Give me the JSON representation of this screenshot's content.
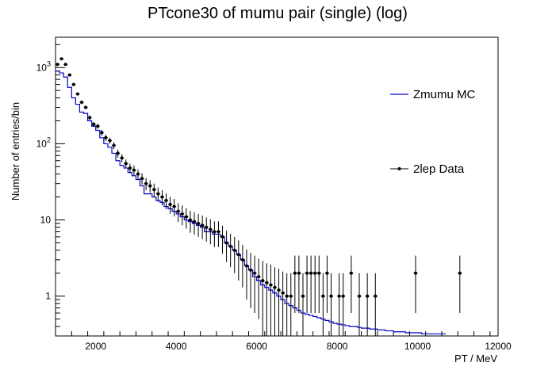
{
  "chart_data": {
    "type": "histogram",
    "title": "PTcone30 of mumu pair (single) (log)",
    "xlabel": "PT / MeV",
    "ylabel": "Number of entries/bin",
    "xlim": [
      1000,
      12000
    ],
    "ylim": [
      0.3,
      2500
    ],
    "yscale": "log",
    "x_ticks": [
      2000,
      4000,
      6000,
      8000,
      10000,
      12000
    ],
    "y_ticks": [
      {
        "value": 1,
        "label": "1"
      },
      {
        "value": 10,
        "label": "10"
      },
      {
        "value": 100,
        "label": "10",
        "exp": "2"
      },
      {
        "value": 1000,
        "label": "10",
        "exp": "3"
      }
    ],
    "bin_width": 100,
    "legend_placement": "right",
    "series": [
      {
        "name": "Zmumu MC",
        "kind": "step",
        "color": "#0000cc",
        "x": [
          1000,
          1100,
          1200,
          1300,
          1400,
          1500,
          1600,
          1700,
          1800,
          1900,
          2000,
          2100,
          2200,
          2300,
          2400,
          2500,
          2600,
          2700,
          2800,
          2900,
          3000,
          3100,
          3200,
          3300,
          3400,
          3500,
          3600,
          3700,
          3800,
          3900,
          4000,
          4100,
          4200,
          4300,
          4400,
          4500,
          4600,
          4700,
          4800,
          4900,
          5000,
          5100,
          5200,
          5300,
          5400,
          5500,
          5600,
          5700,
          5800,
          5900,
          6000,
          6100,
          6200,
          6300,
          6400,
          6500,
          6600,
          6700,
          6800,
          6900,
          7000,
          7100,
          7200,
          7300,
          7400,
          7500,
          7600,
          7700,
          7800,
          7900,
          8000,
          8100,
          8200,
          8300,
          8400,
          8500,
          8600,
          8700,
          8800,
          8900,
          9000,
          9100,
          9200,
          9300,
          9400,
          9500,
          9600,
          9700,
          9800,
          9900,
          10000,
          10100,
          10200,
          10300,
          10400,
          10500,
          10600
        ],
        "values": [
          900,
          850,
          750,
          550,
          400,
          330,
          260,
          250,
          200,
          170,
          150,
          120,
          100,
          90,
          75,
          60,
          52,
          48,
          42,
          38,
          34,
          28,
          22,
          22,
          20,
          18,
          17,
          15,
          14,
          13,
          12,
          11,
          10,
          9.5,
          9,
          8.5,
          8,
          7,
          7,
          6.5,
          6.5,
          6,
          5,
          4.5,
          4,
          3.5,
          3,
          2.5,
          2.2,
          1.8,
          1.6,
          1.4,
          1.3,
          1.2,
          1.1,
          1.0,
          0.9,
          0.8,
          0.75,
          0.7,
          0.65,
          0.6,
          0.58,
          0.56,
          0.54,
          0.52,
          0.5,
          0.48,
          0.46,
          0.44,
          0.43,
          0.42,
          0.41,
          0.4,
          0.4,
          0.39,
          0.38,
          0.38,
          0.37,
          0.37,
          0.36,
          0.36,
          0.35,
          0.35,
          0.34,
          0.34,
          0.34,
          0.33,
          0.33,
          0.33,
          0.33,
          0.32,
          0.32,
          0.32,
          0.32,
          0.32,
          0.32
        ]
      },
      {
        "name": "2lep Data",
        "kind": "points",
        "color": "#000000",
        "x": [
          1050,
          1150,
          1250,
          1350,
          1450,
          1550,
          1650,
          1750,
          1850,
          1950,
          2050,
          2150,
          2250,
          2350,
          2450,
          2550,
          2650,
          2750,
          2850,
          2950,
          3050,
          3150,
          3250,
          3350,
          3450,
          3550,
          3650,
          3750,
          3850,
          3950,
          4050,
          4150,
          4250,
          4350,
          4450,
          4550,
          4650,
          4750,
          4850,
          4950,
          5050,
          5150,
          5250,
          5350,
          5450,
          5550,
          5650,
          5750,
          5850,
          5950,
          6050,
          6150,
          6250,
          6350,
          6450,
          6550,
          6650,
          6750,
          6850,
          6950,
          7050,
          7150,
          7250,
          7350,
          7450,
          7550,
          7650,
          7750,
          7850,
          8050,
          8150,
          8350,
          8550,
          8750,
          8950,
          9950,
          11050
        ],
        "values": [
          1100,
          1300,
          1100,
          800,
          600,
          450,
          350,
          300,
          220,
          180,
          170,
          140,
          120,
          110,
          95,
          75,
          65,
          55,
          48,
          45,
          40,
          35,
          30,
          28,
          25,
          22,
          20,
          18,
          16,
          15,
          13,
          12,
          11,
          10,
          9.5,
          9,
          8.5,
          8,
          7.5,
          7,
          7,
          6,
          5,
          4.5,
          4,
          3.5,
          3,
          2.5,
          2.2,
          2,
          1.8,
          1.6,
          1.5,
          1.4,
          1.3,
          1.2,
          1.1,
          1,
          1,
          2,
          2,
          1,
          2,
          2,
          2,
          2,
          1,
          2,
          1,
          1,
          1,
          2,
          1,
          1,
          1,
          2,
          2
        ],
        "errors": [
          33,
          36,
          33,
          28,
          24,
          21,
          19,
          17,
          15,
          13,
          13,
          12,
          11,
          10,
          10,
          9,
          8,
          7,
          7,
          7,
          6,
          6,
          5.5,
          5.3,
          5,
          4.7,
          4.5,
          4.2,
          4,
          3.9,
          3.6,
          3.5,
          3.3,
          3.2,
          3.1,
          3,
          2.9,
          2.8,
          2.7,
          2.6,
          2.6,
          2.4,
          2.2,
          2.1,
          2,
          1.9,
          1.7,
          1.6,
          1.5,
          1.4,
          1.3,
          1.3,
          1.2,
          1.2,
          1.1,
          1.1,
          1,
          1,
          1,
          1.4,
          1.4,
          1,
          1.4,
          1.4,
          1.4,
          1.4,
          1,
          1.4,
          1,
          1,
          1,
          1.4,
          1,
          1,
          1,
          1.4,
          1.4
        ]
      }
    ]
  }
}
